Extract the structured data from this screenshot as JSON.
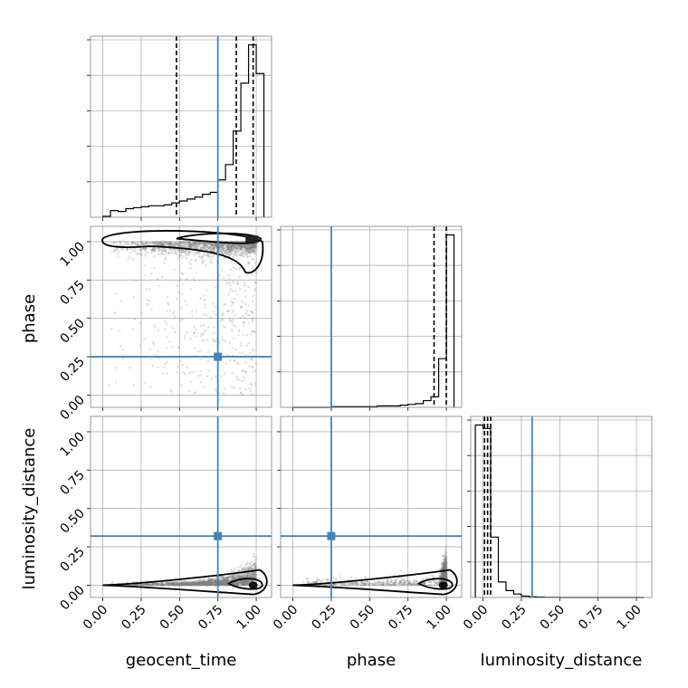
{
  "chart_data": {
    "type": "corner",
    "parameters": [
      "geocent_time",
      "phase",
      "luminosity_distance"
    ],
    "axis_labels": {
      "geocent_time": "geocent_time",
      "phase": "phase",
      "luminosity_distance": "luminosity_distance"
    },
    "tick_values": [
      0.0,
      0.25,
      0.5,
      0.75,
      1.0
    ],
    "tick_labels": [
      "0.00",
      "0.25",
      "0.50",
      "0.75",
      "1.00"
    ],
    "xlim": [
      -0.08,
      1.1
    ],
    "ylim": [
      -0.08,
      1.1
    ],
    "grid": true,
    "colors": {
      "truth": "#4682b4",
      "hist": "#000000",
      "scatter": "#808080"
    },
    "truths": {
      "geocent_time": 0.75,
      "phase": 0.25,
      "luminosity_distance": 0.32
    },
    "histograms": [
      {
        "parameter": "geocent_time",
        "bin_edges": [
          0.0,
          0.05,
          0.1,
          0.15,
          0.2,
          0.25,
          0.3,
          0.35,
          0.4,
          0.45,
          0.5,
          0.55,
          0.6,
          0.65,
          0.7,
          0.75,
          0.8,
          0.85,
          0.9,
          0.95,
          1.0,
          1.05
        ],
        "counts": [
          1,
          7,
          6,
          9,
          10,
          11,
          12,
          12,
          13,
          15,
          17,
          19,
          21,
          24,
          26,
          39,
          55,
          90,
          140,
          180,
          150
        ],
        "quantiles": [
          0.48,
          0.87,
          0.98
        ]
      },
      {
        "parameter": "phase",
        "bin_edges": [
          0.0,
          0.05,
          0.1,
          0.15,
          0.2,
          0.25,
          0.3,
          0.35,
          0.4,
          0.45,
          0.5,
          0.55,
          0.6,
          0.65,
          0.7,
          0.75,
          0.8,
          0.85,
          0.9,
          0.95,
          1.0,
          1.05
        ],
        "counts": [
          0,
          0,
          0,
          0,
          0,
          1,
          1,
          1,
          1,
          1,
          1,
          2,
          2,
          2,
          3,
          4,
          5,
          9,
          14,
          65,
          230
        ],
        "quantiles": [
          0.92,
          1.0
        ]
      },
      {
        "parameter": "luminosity_distance",
        "bin_edges": [
          -0.05,
          0.0,
          0.05,
          0.1,
          0.15,
          0.2,
          0.25,
          0.3,
          0.35,
          0.4,
          0.45,
          0.5,
          0.55,
          0.6,
          0.65,
          0.7,
          0.75,
          0.8,
          0.85,
          0.9,
          0.95,
          1.0,
          1.05
        ],
        "counts": [
          1000,
          980,
          350,
          90,
          40,
          20,
          8,
          4,
          2,
          1,
          1,
          0,
          0,
          0,
          0,
          0,
          0,
          0,
          0,
          0,
          0,
          0
        ],
        "quantiles": [
          0.01,
          0.03,
          0.05
        ]
      }
    ],
    "scatter_panels": [
      {
        "x": "geocent_time",
        "y": "phase"
      },
      {
        "x": "geocent_time",
        "y": "luminosity_distance"
      },
      {
        "x": "phase",
        "y": "luminosity_distance"
      }
    ]
  }
}
